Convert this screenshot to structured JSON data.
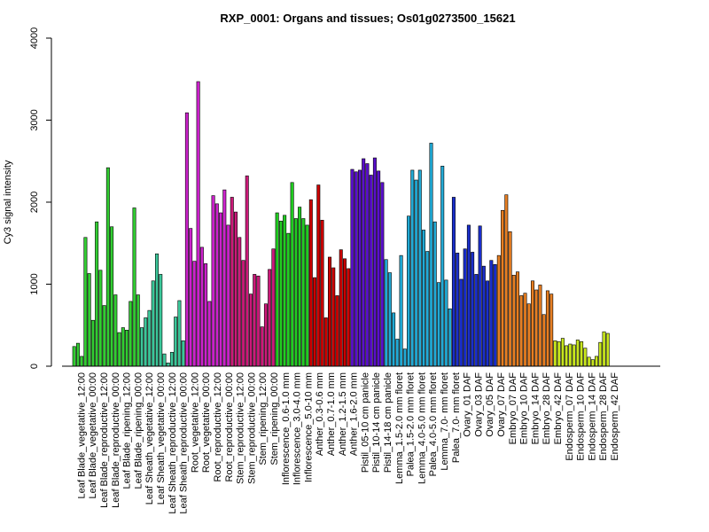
{
  "chart_data": {
    "type": "bar",
    "title": "RXP_0001: Organs and tissues; Os01g0273500_15621",
    "xlabel": "",
    "ylabel": "Cy3 signal intensity",
    "ylim": [
      0,
      4000
    ],
    "yticks": [
      0,
      1000,
      2000,
      3000,
      4000
    ],
    "grid": false,
    "legend": "none",
    "groups": [
      {
        "color": "#32cd32",
        "values": [
          240,
          280,
          120
        ]
      },
      {
        "color": "#32cd32",
        "values": [
          1570,
          1130,
          560
        ]
      },
      {
        "color": "#32cd32",
        "values": [
          1760,
          1170,
          740
        ]
      },
      {
        "color": "#32cd32",
        "values": [
          2420,
          1700,
          870
        ]
      },
      {
        "color": "#32cd32",
        "values": [
          410,
          470,
          440
        ]
      },
      {
        "color": "#32cd32",
        "values": [
          790,
          1930,
          870
        ]
      },
      {
        "color": "#3cc79a",
        "values": [
          470,
          590,
          680
        ]
      },
      {
        "color": "#3cc79a",
        "values": [
          1040,
          1370,
          1120
        ]
      },
      {
        "color": "#3cc79a",
        "values": [
          150,
          40,
          170
        ]
      },
      {
        "color": "#3cc79a",
        "values": [
          600,
          800,
          310
        ]
      },
      {
        "color": "#cc22cc",
        "values": [
          3090,
          1680,
          1280
        ]
      },
      {
        "color": "#cc22cc",
        "values": [
          3470,
          1450,
          1250
        ]
      },
      {
        "color": "#cc22cc",
        "values": [
          790,
          2080,
          1980
        ]
      },
      {
        "color": "#cc22cc",
        "values": [
          1870,
          2150,
          1720
        ]
      },
      {
        "color": "#cc1a7a",
        "values": [
          2060,
          1880,
          1570
        ]
      },
      {
        "color": "#cc1a7a",
        "values": [
          1290,
          2320,
          880
        ]
      },
      {
        "color": "#cc1a7a",
        "values": [
          1120,
          1100,
          480
        ]
      },
      {
        "color": "#cc1a7a",
        "values": [
          760,
          1180,
          1430
        ]
      },
      {
        "color": "#22cc22",
        "values": [
          1870,
          1770,
          1840
        ]
      },
      {
        "color": "#22cc22",
        "values": [
          1620,
          2240,
          1800
        ]
      },
      {
        "color": "#22cc22",
        "values": [
          1940,
          1800,
          1720
        ]
      },
      {
        "color": "#cc0000",
        "values": [
          2030,
          1080
        ]
      },
      {
        "color": "#cc0000",
        "values": [
          2210,
          1780,
          590
        ]
      },
      {
        "color": "#cc0000",
        "values": [
          1330,
          1200,
          860
        ]
      },
      {
        "color": "#cc0000",
        "values": [
          1420,
          1310,
          1190
        ]
      },
      {
        "color": "#5a0fcc",
        "values": [
          2400,
          2370,
          2390
        ]
      },
      {
        "color": "#5a0fcc",
        "values": [
          2530,
          2470,
          2330
        ]
      },
      {
        "color": "#5a0fcc",
        "values": [
          2540,
          2380,
          2240
        ]
      },
      {
        "color": "#22aad5",
        "values": [
          1300,
          1140,
          650
        ]
      },
      {
        "color": "#22aad5",
        "values": [
          330,
          1350,
          210
        ]
      },
      {
        "color": "#22aad5",
        "values": [
          1830,
          2390,
          2270
        ]
      },
      {
        "color": "#22aad5",
        "values": [
          2390,
          1660,
          1400
        ]
      },
      {
        "color": "#22aad5",
        "values": [
          2720,
          1760,
          1020
        ]
      },
      {
        "color": "#22aad5",
        "values": [
          2440,
          1050,
          700
        ]
      },
      {
        "color": "#1a2ecc",
        "values": [
          2060,
          1380,
          1060
        ]
      },
      {
        "color": "#1a2ecc",
        "values": [
          1430,
          1720,
          1390
        ]
      },
      {
        "color": "#1a2ecc",
        "values": [
          1120,
          1710,
          1220
        ]
      },
      {
        "color": "#1a2ecc",
        "values": [
          1040,
          1290,
          1240
        ]
      },
      {
        "color": "#e67e22",
        "values": [
          1350,
          1900,
          2090
        ]
      },
      {
        "color": "#e67e22",
        "values": [
          1640,
          1110,
          1150
        ]
      },
      {
        "color": "#e67e22",
        "values": [
          860,
          890,
          760
        ]
      },
      {
        "color": "#e67e22",
        "values": [
          1040,
          930,
          990
        ]
      },
      {
        "color": "#e67e22",
        "values": [
          630,
          920,
          880
        ]
      },
      {
        "color": "#c8e61e",
        "values": [
          310,
          300,
          340
        ]
      },
      {
        "color": "#c8e61e",
        "values": [
          250,
          270,
          260
        ]
      },
      {
        "color": "#c8e61e",
        "values": [
          320,
          300,
          220
        ]
      },
      {
        "color": "#c8e61e",
        "values": [
          110,
          80,
          120
        ]
      },
      {
        "color": "#c8e61e",
        "values": [
          290,
          420,
          400
        ]
      }
    ],
    "tick_labels": [
      "Leaf Blade_vegetative_12:00",
      "Leaf Blade_vegetative_00:00",
      "Leaf Blade_reproductive_12:00",
      "Leaf Blade_reproductive_00:00",
      "Leaf Blade_ripening_12:00",
      "Leaf Blade_ripening_00:00",
      "Leaf Sheath_vegetative_12:00",
      "Leaf Sheath_vegetative_00:00",
      "Leaf Sheath_reproductive_12:00",
      "Leaf Sheath_reproductive_00:00",
      "Root_vegetative_12:00",
      "Root_vegetative_00:00",
      "Root_reproductive_12:00",
      "Root_reproductive_00:00",
      "Stem_reproductive_12:00",
      "Stem_reproductive_00:00",
      "Stem_ripening_12:00",
      "Stem_ripening_00:00",
      "Inflorescence_0.6-1.0 mm",
      "Inflorescence_3.0-4.0 mm",
      "Inflorescence_5.0-10 mm",
      "Anther_0.3-0.6 mm",
      "Anther_0.7-1.0 mm",
      "Anther_1.2-1.5 mm",
      "Anther_1.6-2.0 mm",
      "Pistil_05-10 cm panicle",
      "Pistil_10-14 cm panicle",
      "Pistil_14-18 cm panicle",
      "Lemma_1.5-2.0 mm floret",
      "Palea_1.5-2.0 mm floret",
      "Lemma_4.0-5.0 mm floret",
      "Palea_4.0-5.0 mm floret",
      "Lemma_7.0- mm floret",
      "Palea_7.0- mm floret",
      "Ovary_01 DAF",
      "Ovary_03 DAF",
      "Ovary_05 DAF",
      "Ovary_07 DAF",
      "Embryo_07 DAF",
      "Embryo_10 DAF",
      "Embryo_14 DAF",
      "Embryo_28 DAF",
      "Embryo_42 DAF",
      "Endosperm_07 DAF",
      "Endosperm_10 DAF",
      "Endosperm_14 DAF",
      "Endosperm_28 DAF",
      "Endosperm_42 DAF"
    ]
  }
}
